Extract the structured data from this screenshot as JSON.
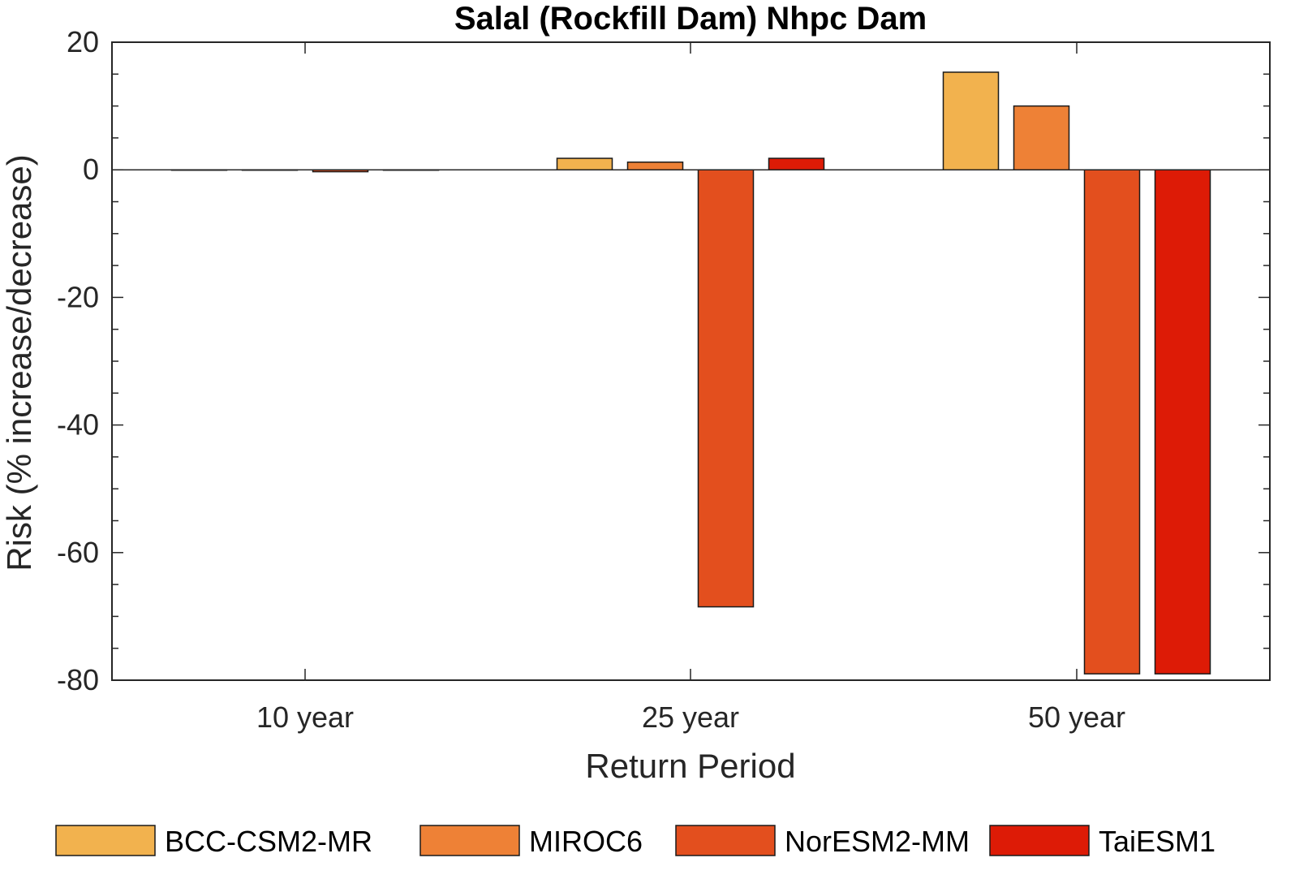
{
  "chart_data": {
    "type": "bar",
    "title": "Salal (Rockfill Dam) Nhpc Dam",
    "xlabel": "Return Period",
    "ylabel": "Risk (% increase/decrease)",
    "categories": [
      "10 year",
      "25 year",
      "50 year"
    ],
    "ylim": [
      -80,
      20
    ],
    "yticks": [
      20,
      0,
      -20,
      -40,
      -60,
      -80
    ],
    "grid": false,
    "legend_position": "bottom",
    "series": [
      {
        "name": "BCC-CSM2-MR",
        "color": "#F2B24E",
        "values": [
          0,
          1.8,
          15.3
        ]
      },
      {
        "name": "MIROC6",
        "color": "#EE8136",
        "values": [
          0,
          1.2,
          10.0
        ]
      },
      {
        "name": "NorESM2-MM",
        "color": "#E34F1E",
        "values": [
          -0.3,
          -68.5,
          -79.0
        ]
      },
      {
        "name": "TaiESM1",
        "color": "#DD1B06",
        "values": [
          0,
          1.8,
          -79.0
        ]
      }
    ]
  }
}
